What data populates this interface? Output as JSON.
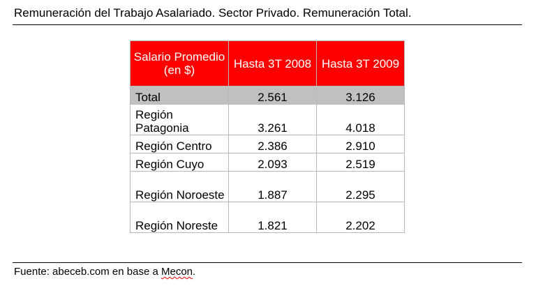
{
  "document": {
    "title": "Remuneración del Trabajo Asalariado. Sector Privado. Remuneración Total.",
    "source_prefix": "Fuente: abeceb.com en base a ",
    "source_link": "Mecon",
    "source_suffix": "."
  },
  "table": {
    "headers": [
      "Salario Promedio (en $)",
      "Hasta 3T 2008",
      "Hasta 3T 2009"
    ],
    "rows": [
      {
        "label": "Total",
        "v2008": "2.561",
        "v2009": "3.126"
      },
      {
        "label": "Región Patagonia",
        "v2008": "3.261",
        "v2009": "4.018"
      },
      {
        "label": "Región Centro",
        "v2008": "2.386",
        "v2009": "2.910"
      },
      {
        "label": "Región Cuyo",
        "v2008": "2.093",
        "v2009": "2.519"
      },
      {
        "label": "Región Noroeste",
        "v2008": "1.887",
        "v2009": "2.295"
      },
      {
        "label": "Región Noreste",
        "v2008": "1.821",
        "v2009": "2.202"
      }
    ]
  },
  "colors": {
    "header_bg": "#ff0000",
    "header_text": "#ffffff",
    "total_row_bg": "#c0c0c0",
    "border": "#b8b8b8"
  }
}
